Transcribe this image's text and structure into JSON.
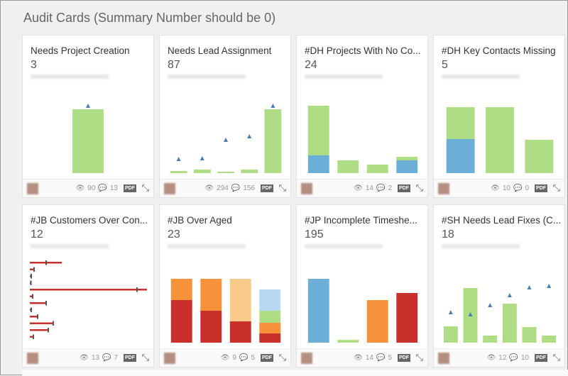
{
  "page": {
    "title": "Audit Cards (Summary Number should be 0)"
  },
  "colors": {
    "green": "#aedd85",
    "blue": "#6baed6",
    "red": "#c9302c",
    "orange": "#f6923a",
    "light_orange": "#f8cb8a",
    "light_blue": "#b8d8f0",
    "marker": "#4a7fb5"
  },
  "cards": [
    {
      "title": "Needs Project Creation",
      "number": "3",
      "views": "90",
      "comments": "13",
      "pdf": "PDF",
      "chart": {
        "type": "bar",
        "stacks": [
          [
            [
              "green",
              90
            ]
          ]
        ],
        "markers": [
          95
        ]
      }
    },
    {
      "title": "Needs Lead Assignment",
      "number": "87",
      "views": "294",
      "comments": "156",
      "pdf": "PDF",
      "chart": {
        "type": "bar",
        "stacks": [
          [
            [
              "green",
              3
            ]
          ],
          [
            [
              "green",
              5
            ]
          ],
          [
            [
              "green",
              2
            ]
          ],
          [
            [
              "green",
              5
            ]
          ],
          [
            [
              "green",
              90
            ]
          ]
        ],
        "markers": [
          20,
          21,
          47,
          52,
          95
        ]
      }
    },
    {
      "title": "#DH Projects With No Co...",
      "number": "24",
      "views": "14",
      "comments": "2",
      "pdf": "PDF",
      "chart": {
        "type": "bar",
        "stacks": [
          [
            [
              "blue",
              25
            ],
            [
              "green",
              70
            ]
          ],
          [
            [
              "green",
              18
            ]
          ],
          [
            [
              "green",
              12
            ]
          ],
          [
            [
              "blue",
              18
            ],
            [
              "green",
              5
            ]
          ]
        ],
        "markers": []
      }
    },
    {
      "title": "#DH Key Contacts Missing",
      "number": "5",
      "views": "10",
      "comments": "0",
      "pdf": "PDF",
      "chart": {
        "type": "bar",
        "stacks": [
          [
            [
              "blue",
              48
            ],
            [
              "green",
              45
            ]
          ],
          [
            [
              "green",
              93
            ]
          ],
          [
            [
              "green",
              47
            ]
          ]
        ],
        "markers": []
      }
    },
    {
      "title": "#JB Customers Over Con...",
      "number": "12",
      "views": "13",
      "comments": "7",
      "pdf": "PDF",
      "chart": {
        "type": "hbar",
        "values": [
          45,
          5,
          1,
          0.5,
          165,
          3,
          22,
          1,
          10,
          32,
          25,
          4
        ],
        "markers": [
          22,
          null,
          null,
          null,
          150
        ]
      }
    },
    {
      "title": "#JB Over Aged",
      "number": "23",
      "views": "9",
      "comments": "5",
      "pdf": "PDF",
      "chart": {
        "type": "bar",
        "stacks": [
          [
            [
              "red",
              60
            ],
            [
              "orange",
              30
            ]
          ],
          [
            [
              "red",
              45
            ],
            [
              "orange",
              45
            ]
          ],
          [
            [
              "red",
              30
            ],
            [
              "light_orange",
              60
            ]
          ],
          [
            [
              "red",
              13
            ],
            [
              "orange",
              15
            ],
            [
              "green",
              17
            ],
            [
              "light_blue",
              30
            ]
          ]
        ],
        "markers": []
      }
    },
    {
      "title": "#JP Incomplete Timeshe...",
      "number": "195",
      "views": "14",
      "comments": "5",
      "pdf": "PDF",
      "chart": {
        "type": "bar",
        "stacks": [
          [
            [
              "blue",
              90
            ]
          ],
          [
            [
              "green",
              4
            ]
          ],
          [
            [
              "orange",
              60
            ]
          ],
          [
            [
              "red",
              70
            ]
          ]
        ],
        "markers": []
      }
    },
    {
      "title": "#SH Needs Lead Fixes (C...",
      "number": "18",
      "views": "12",
      "comments": "10",
      "pdf": "PDF",
      "chart": {
        "type": "bar",
        "stacks": [
          [
            [
              "green",
              23
            ]
          ],
          [
            [
              "green",
              77
            ]
          ],
          [
            [
              "green",
              10
            ]
          ],
          [
            [
              "green",
              55
            ]
          ],
          [
            [
              "green",
              22
            ]
          ],
          [
            [
              "green",
              10
            ]
          ]
        ],
        "markers": [
          43,
          40,
          53,
          67,
          78,
          80
        ]
      }
    }
  ]
}
